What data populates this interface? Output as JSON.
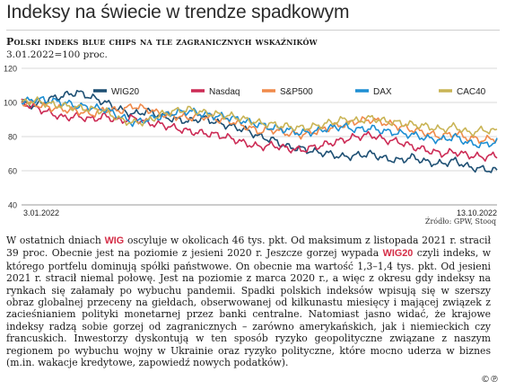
{
  "headline": "Indeksy na świecie w trendze spadkowym",
  "source": "Źródło: GPW, Stooq",
  "copyright_icons": "©℗",
  "article": {
    "s1": "W ostatnich dniach",
    "tag1": "WIG",
    "s2": "oscyluje w okolicach 46 tys. pkt. Od maksimum z listopada 2021 r. stracił 39 proc. Obecnie jest na poziomie z jesieni 2020 r. Jeszcze gorzej wypada",
    "tag2": "WIG20",
    "s3": "czyli indeks, w którego portfelu dominują spółki państwowe. On obecnie ma wartość 1,3–1,4 tys. pkt. Od jesieni 2021 r. stracił niemal połowę. Jest na poziomie z marca 2020 r., a więc z okresu gdy indeksy na rynkach się załamały po wybuchu pandemii. Spadki polskich indeksów wpisują się w szerszy obraz globalnej przeceny na giełdach, obserwowanej od kilkunastu miesięcy i mającej związek z zacieśnianiem polityki monetarnej przez banki centralne. Natomiast jasno widać, że krajowe indeksy radzą sobie gorzej od zagranicznych – zarówno amerykańskich, jak i niemieckich czy francuskich. Inwestorzy dyskontują w ten sposób ryzyko geopolityczne związane z naszym regionem po wybuchu wojny w Ukrainie oraz ryzyko polityczne, które mocno uderza w biznes (m.in. wakacje kredytowe, zapowiedź nowych podatków)."
  },
  "chart_data": {
    "type": "line",
    "title": "Polski indeks blue chips na tle zagranicznych wskaźników",
    "subtitle": "3.01.2022=100 proc.",
    "x_start_label": "3.01.2022",
    "x_end_label": "13.10.2022",
    "ylim": [
      40,
      120
    ],
    "yticks": [
      40,
      60,
      80,
      100,
      120
    ],
    "grid": true,
    "legend_position": "top",
    "series": [
      {
        "name": "WIG20",
        "color": "#1d4f73",
        "values": [
          100,
          98,
          102,
          104,
          106,
          103,
          100,
          96,
          93,
          95,
          92,
          90,
          89,
          91,
          88,
          86,
          84,
          80,
          78,
          74,
          73,
          71,
          70,
          68,
          69,
          70,
          67,
          66,
          68,
          65,
          64,
          66,
          62,
          61,
          60
        ]
      },
      {
        "name": "Nasdaq",
        "color": "#cc2b55",
        "values": [
          100,
          97,
          94,
          91,
          92,
          90,
          92,
          89,
          91,
          88,
          87,
          85,
          83,
          82,
          81,
          79,
          76,
          74,
          75,
          73,
          72,
          74,
          76,
          78,
          80,
          81,
          78,
          77,
          74,
          72,
          70,
          71,
          69,
          68,
          69
        ]
      },
      {
        "name": "S&P500",
        "color": "#f08a4b",
        "values": [
          100,
          99,
          97,
          96,
          95,
          93,
          96,
          95,
          98,
          96,
          93,
          92,
          91,
          92,
          90,
          89,
          86,
          83,
          84,
          82,
          81,
          83,
          85,
          87,
          89,
          90,
          88,
          86,
          84,
          82,
          80,
          82,
          79,
          78,
          79
        ]
      },
      {
        "name": "DAX",
        "color": "#1e8fd3",
        "values": [
          100,
          102,
          101,
          100,
          98,
          97,
          96,
          92,
          88,
          90,
          92,
          94,
          95,
          93,
          92,
          91,
          89,
          87,
          85,
          84,
          82,
          83,
          85,
          86,
          84,
          85,
          83,
          82,
          81,
          79,
          78,
          80,
          76,
          75,
          77
        ]
      },
      {
        "name": "CAC40",
        "color": "#c9b455",
        "values": [
          100,
          101,
          99,
          98,
          97,
          96,
          95,
          90,
          88,
          89,
          93,
          95,
          96,
          94,
          93,
          92,
          90,
          88,
          87,
          86,
          85,
          86,
          88,
          90,
          89,
          91,
          89,
          88,
          87,
          86,
          84,
          86,
          82,
          84,
          83
        ]
      }
    ]
  }
}
